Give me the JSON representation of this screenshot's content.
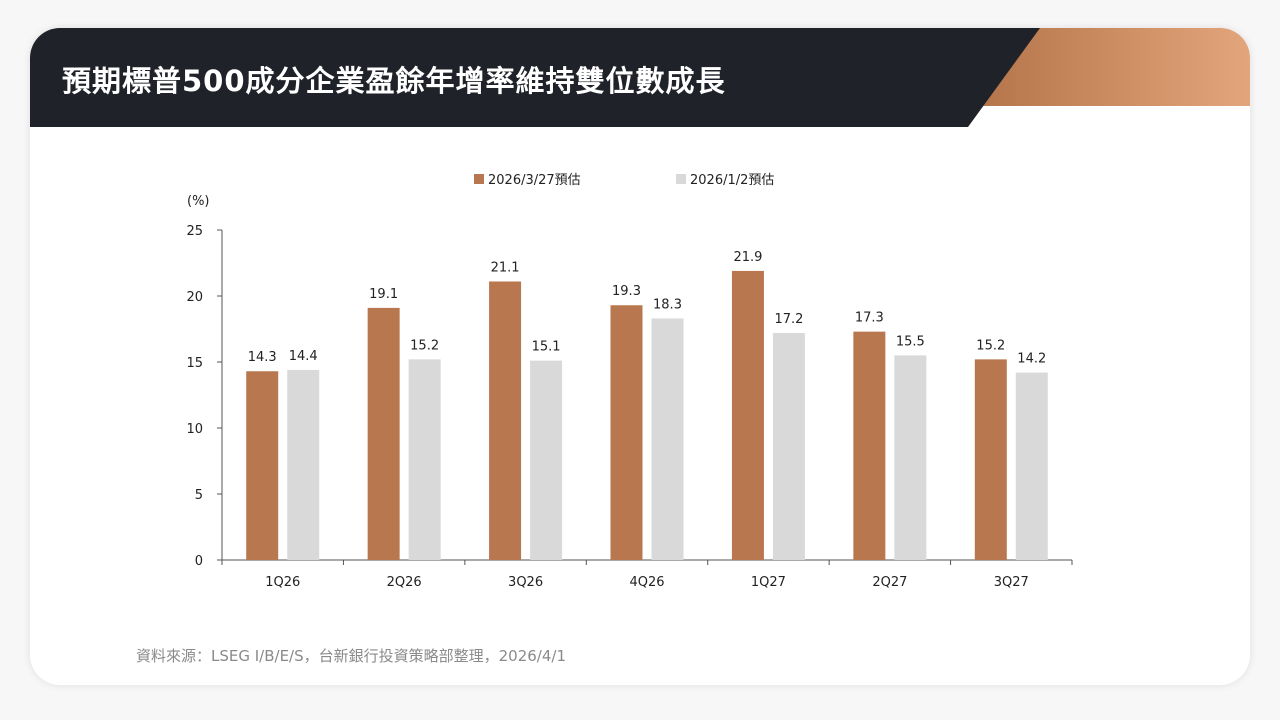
{
  "title": "預期標普500成分企業盈餘年增率維持雙位數成長",
  "colors": {
    "title_band": "#1f2229",
    "accent_start": "#b5754a",
    "accent_end": "#e3a57b",
    "series_current": "#b8774f",
    "series_prior": "#d9d9d9",
    "axis": "#555555",
    "text": "#222222",
    "source": "#8a8a8a"
  },
  "chart_data": {
    "type": "bar",
    "ylabel": "(%)",
    "ylim": [
      0,
      25
    ],
    "yticks": [
      0,
      5,
      10,
      15,
      20,
      25
    ],
    "categories": [
      "1Q26",
      "2Q26",
      "3Q26",
      "4Q26",
      "1Q27",
      "2Q27",
      "3Q27"
    ],
    "series": [
      {
        "name": "2026/3/27預估",
        "values": [
          14.3,
          19.1,
          21.1,
          19.3,
          21.9,
          17.3,
          15.2
        ]
      },
      {
        "name": "2026/1/2預估",
        "values": [
          14.4,
          15.2,
          15.1,
          18.3,
          17.2,
          15.5,
          14.2
        ]
      }
    ],
    "legend_position": "top-center",
    "grid": false,
    "data_labels": true
  },
  "source": "資料來源：LSEG I/B/E/S，台新銀行投資策略部整理，2026/4/1"
}
